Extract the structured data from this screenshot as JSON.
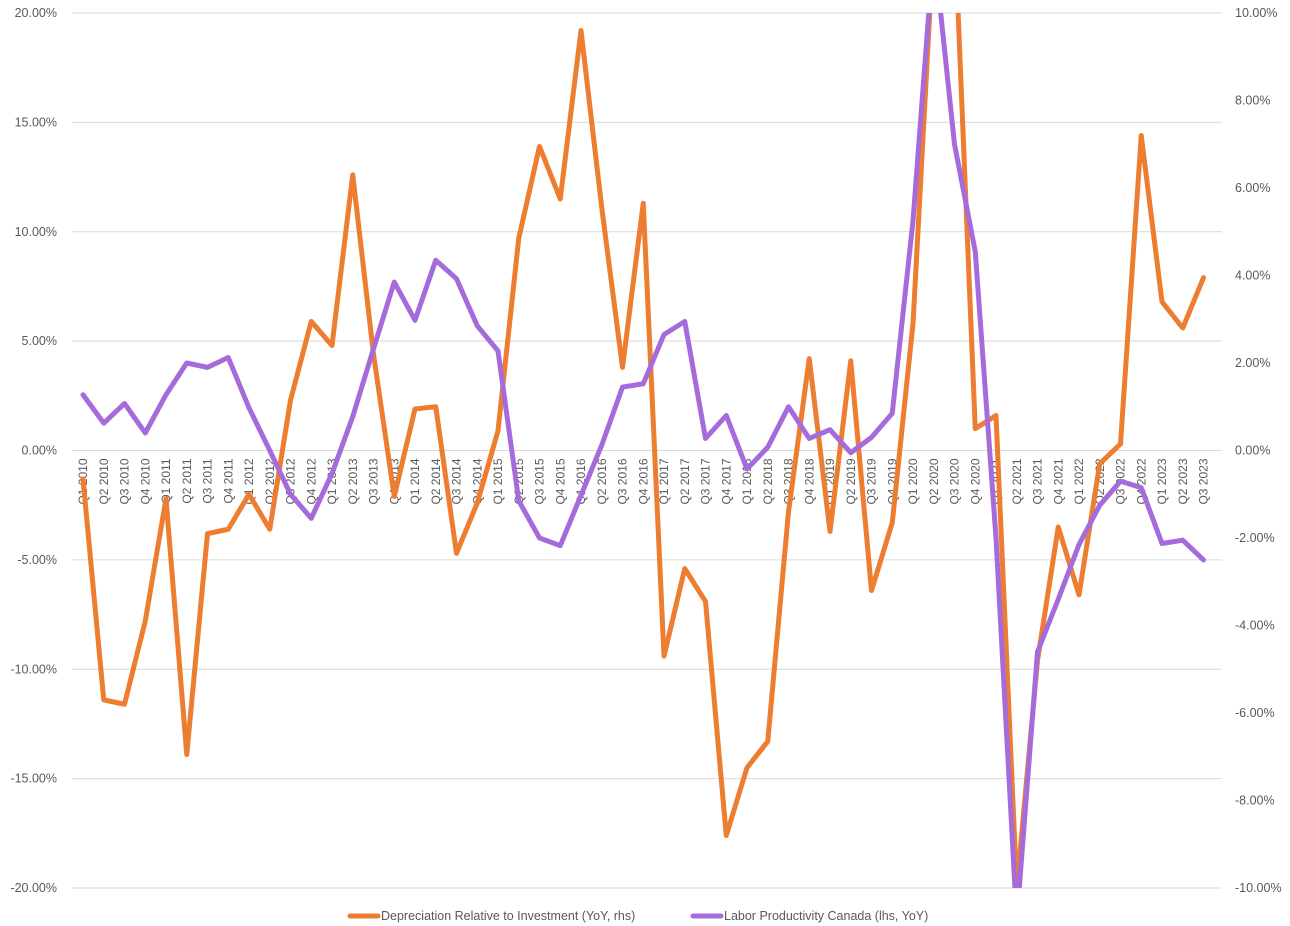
{
  "chart_data": {
    "type": "line",
    "title": "",
    "xlabel": "",
    "ylabel": "",
    "categories": [
      "Q1 2010",
      "Q2 2010",
      "Q3 2010",
      "Q4 2010",
      "Q1 2011",
      "Q2 2011",
      "Q3 2011",
      "Q4 2011",
      "Q1 2012",
      "Q2 2012",
      "Q3 2012",
      "Q4 2012",
      "Q1 2013",
      "Q2 2013",
      "Q3 2013",
      "Q4 2013",
      "Q1 2014",
      "Q2 2014",
      "Q3 2014",
      "Q4 2014",
      "Q1 2015",
      "Q2 2015",
      "Q3 2015",
      "Q4 2015",
      "Q1 2016",
      "Q2 2016",
      "Q3 2016",
      "Q4 2016",
      "Q1 2017",
      "Q2 2017",
      "Q3 2017",
      "Q4 2017",
      "Q1 2018",
      "Q2 2018",
      "Q3 2018",
      "Q4 2018",
      "Q1 2019",
      "Q2 2019",
      "Q3 2019",
      "Q4 2019",
      "Q1 2020",
      "Q2 2020",
      "Q3 2020",
      "Q4 2020",
      "Q1 2021",
      "Q2 2021",
      "Q3 2021",
      "Q4 2021",
      "Q1 2022",
      "Q2 2022",
      "Q3 2022",
      "Q4 2022",
      "Q1 2023",
      "Q2 2023",
      "Q3 2023"
    ],
    "x_tick_labels": [
      "Q1 2010",
      "Q2 2010",
      "Q3 2010",
      "Q4 2010",
      "Q1 2011",
      "Q2 2011",
      "Q3 2011",
      "Q4 2011",
      "Q1 2012",
      "Q2 2012",
      "Q3 2012",
      "Q4 2012",
      "Q1 2013",
      "Q2 2013",
      "Q3 2013",
      "Q4 2013",
      "Q1 2014",
      "Q2 2014",
      "Q3 2014",
      "Q4 2014",
      "Q1 2015",
      "Q2 2015",
      "Q3 2015",
      "Q4 2015",
      "Q1 2016",
      "Q2 2016",
      "Q3 2016",
      "Q4 2016",
      "Q1 2017",
      "Q2 2017",
      "Q3 2017",
      "Q4 2017",
      "Q1 2018",
      "Q2 2018",
      "Q3 2018",
      "Q4 2018",
      "Q1 2019",
      "Q2 2019",
      "Q3 2019",
      "Q4 2019",
      "Q1 2020",
      "Q2 2020",
      "Q3 2020",
      "Q4 2020",
      "Q1 2021",
      "Q2 2021",
      "Q3 2021",
      "Q4 2021",
      "Q1 2022",
      "Q2 2022",
      "Q3 2022",
      "Q4 2022",
      "Q1 2023",
      "Q2 2023",
      "Q3 2023"
    ],
    "y_left": {
      "ylim": [
        -20,
        20
      ],
      "ticks": [
        20,
        15,
        10,
        5,
        0,
        -5,
        -10,
        -15,
        -20
      ],
      "tick_labels": [
        "20.00%",
        "15.00%",
        "10.00%",
        "5.00%",
        "0.00%",
        "-5.00%",
        "-10.00%",
        "-15.00%",
        "-20.00%"
      ]
    },
    "y_right": {
      "ylim": [
        -10,
        10
      ],
      "ticks": [
        10,
        8,
        6,
        4,
        2,
        0,
        -2,
        -4,
        -6,
        -8,
        -10
      ],
      "tick_labels": [
        "10.00%",
        "8.00%",
        "6.00%",
        "4.00%",
        "2.00%",
        "0.00%",
        "-2.00%",
        "-4.00%",
        "-6.00%",
        "-8.00%",
        "-10.00%"
      ]
    },
    "grid": true,
    "legend_position": "bottom",
    "series": [
      {
        "name": "Depreciation Relative to Investment (YoY, rhs)",
        "axis": "right",
        "color": "#ED7D31",
        "values": [
          -0.65,
          -5.7,
          -5.8,
          -3.9,
          -1.1,
          -6.95,
          -1.9,
          -1.8,
          -1.0,
          -1.8,
          1.15,
          2.95,
          2.4,
          6.3,
          2.2,
          -1.05,
          0.95,
          1.0,
          -2.35,
          -1.2,
          0.45,
          4.85,
          6.95,
          5.75,
          9.6,
          5.55,
          1.9,
          5.65,
          -4.7,
          -2.7,
          -3.45,
          -8.8,
          -7.25,
          -6.65,
          -1.4,
          2.1,
          -1.85,
          2.05,
          -3.2,
          -1.65,
          2.9,
          11.7,
          12.0,
          0.5,
          0.8,
          -10.0,
          -4.8,
          -1.75,
          -3.3,
          -0.3,
          0.15,
          7.2,
          3.4,
          2.8,
          3.95
        ]
      },
      {
        "name": "Labor Productivity Canada (lhs, YoY)",
        "axis": "left",
        "color": "#A66BDB",
        "values": [
          2.55,
          1.25,
          2.15,
          0.8,
          2.55,
          4.0,
          3.8,
          4.25,
          1.95,
          0.0,
          -2.0,
          -3.1,
          -1.05,
          1.55,
          4.65,
          7.7,
          5.95,
          8.7,
          7.85,
          5.7,
          4.55,
          -2.3,
          -4.0,
          -4.35,
          -2.05,
          0.25,
          2.9,
          3.05,
          5.3,
          5.9,
          0.55,
          1.6,
          -0.85,
          0.15,
          2.0,
          0.55,
          0.95,
          -0.1,
          0.6,
          1.7,
          10.5,
          23.0,
          14.0,
          9.1,
          -4.0,
          -21.5,
          -9.2,
          -6.8,
          -4.3,
          -2.5,
          -1.4,
          -1.7,
          -4.25,
          -4.1,
          -5.0
        ]
      }
    ]
  }
}
